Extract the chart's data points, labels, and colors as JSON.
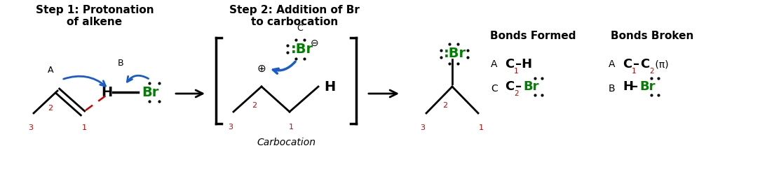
{
  "step1_title": "Step 1: Protonation\nof alkene",
  "step2_title": "Step 2: Addition of Br\nto carbocation",
  "bonds_formed_title": "Bonds Formed",
  "bonds_broken_title": "Bonds Broken",
  "carbocation_label": "Carbocation",
  "bg_color": "#ffffff",
  "black": "#000000",
  "red": "#cc0000",
  "green": "#008000",
  "blue": "#1a5ccc"
}
